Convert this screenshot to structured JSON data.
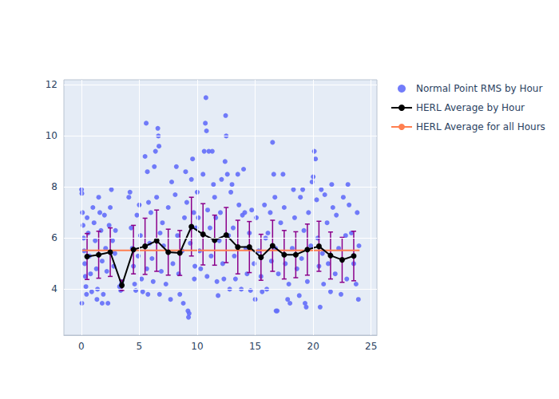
{
  "chart_data": {
    "type": "scatter",
    "xlim": [
      -1.5,
      25.5
    ],
    "xticks": [
      0,
      5,
      10,
      15,
      20,
      25
    ],
    "ylim": [
      2.2,
      12.2
    ],
    "yticks": [
      4,
      6,
      8,
      10,
      12
    ],
    "grid": true,
    "legend": "top-right",
    "series": [
      {
        "name": "Normal Point RMS by Hour",
        "type": "scatter",
        "marker": "circle",
        "color": "#636efa",
        "x": [
          0.02,
          0.05,
          0.1,
          0.15,
          0.2,
          0.25,
          0.3,
          0.35,
          0.4,
          0.45,
          0.05,
          0.5,
          0.6,
          0.7,
          0.8,
          0.9,
          1.0,
          1.1,
          1.2,
          1.3,
          1.4,
          1.5,
          1.6,
          1.7,
          1.8,
          1.9,
          1.35,
          1.8,
          2.0,
          2.1,
          2.2,
          2.3,
          2.4,
          2.5,
          2.6,
          2.7,
          2.8,
          2.9,
          2.95,
          3.3,
          3.4,
          3.5,
          3.45,
          4.1,
          4.2,
          4.3,
          4.4,
          4.5,
          4.6,
          4.7,
          4.8,
          4.9,
          5.0,
          5.1,
          5.2,
          5.3,
          5.5,
          5.6,
          5.7,
          5.8,
          5.9,
          5.65,
          5.75,
          6.0,
          6.1,
          6.2,
          6.3,
          6.4,
          6.5,
          6.6,
          6.65,
          6.7,
          6.8,
          6.9,
          6.75,
          7.0,
          7.1,
          7.3,
          7.5,
          7.7,
          7.8,
          7.9,
          8.1,
          8.2,
          8.3,
          8.4,
          8.5,
          8.7,
          8.9,
          8.8,
          9.0,
          9.1,
          9.2,
          9.25,
          9.3,
          9.4,
          9.5,
          9.6,
          9.7,
          9.8,
          9.9,
          9.75,
          10.0,
          10.1,
          10.2,
          10.3,
          10.5,
          10.6,
          10.7,
          10.75,
          10.8,
          10.9,
          10.85,
          11.0,
          11.1,
          11.2,
          11.3,
          11.4,
          11.5,
          11.6,
          11.7,
          11.8,
          11.9,
          12.0,
          12.1,
          12.2,
          12.3,
          12.4,
          12.45,
          12.5,
          12.6,
          12.7,
          12.8,
          12.9,
          13.0,
          13.1,
          13.2,
          13.3,
          13.5,
          13.6,
          13.8,
          13.9,
          14.0,
          14.1,
          14.2,
          14.3,
          14.5,
          14.6,
          14.7,
          14.9,
          15.0,
          15.1,
          15.3,
          15.5,
          15.6,
          15.8,
          15.9,
          16.0,
          16.1,
          16.3,
          16.4,
          16.5,
          16.6,
          16.7,
          16.8,
          16.9,
          16.75,
          17.0,
          17.2,
          17.4,
          17.5,
          17.6,
          17.8,
          17.9,
          18.0,
          18.2,
          18.3,
          18.4,
          18.6,
          18.8,
          18.9,
          19.0,
          19.1,
          19.2,
          19.3,
          19.4,
          19.5,
          19.6,
          19.8,
          19.9,
          20.0,
          20.1,
          20.2,
          20.3,
          20.4,
          20.5,
          20.6,
          20.7,
          20.8,
          20.9,
          21.0,
          21.2,
          21.3,
          21.5,
          21.6,
          21.7,
          21.9,
          22.0,
          22.2,
          22.4,
          22.6,
          22.8,
          22.9,
          23.0,
          23.1,
          23.3,
          23.5,
          23.7,
          23.8,
          23.9,
          23.95
        ],
        "values": [
          7.9,
          7.75,
          7.0,
          6.5,
          6.0,
          5.5,
          5.0,
          4.5,
          4.1,
          3.8,
          3.45,
          6.8,
          6.2,
          5.3,
          4.6,
          3.9,
          7.2,
          6.6,
          5.9,
          4.8,
          4.0,
          7.6,
          7.0,
          6.3,
          5.1,
          3.8,
          3.6,
          3.45,
          6.9,
          5.6,
          4.7,
          3.45,
          6.5,
          7.2,
          7.9,
          5.9,
          4.9,
          5.4,
          6.3,
          4.1,
          3.95,
          4.3,
          4.2,
          7.6,
          7.8,
          6.4,
          5.6,
          4.9,
          4.2,
          3.95,
          6.9,
          5.3,
          7.3,
          6.1,
          4.4,
          3.9,
          9.2,
          10.5,
          8.6,
          7.4,
          5.8,
          4.8,
          3.8,
          7.0,
          5.2,
          4.3,
          8.8,
          9.4,
          7.6,
          10.3,
          10.0,
          9.6,
          6.2,
          4.7,
          3.8,
          6.6,
          5.7,
          4.2,
          7.2,
          3.6,
          8.2,
          5.0,
          7.7,
          8.8,
          6.1,
          4.6,
          3.8,
          5.5,
          6.8,
          3.45,
          8.6,
          7.4,
          3.15,
          2.9,
          3.05,
          5.8,
          8.3,
          9.1,
          7.0,
          4.9,
          6.4,
          4.4,
          7.8,
          6.8,
          5.5,
          4.8,
          8.5,
          9.4,
          10.5,
          11.5,
          10.2,
          7.1,
          4.5,
          9.4,
          6.4,
          5.3,
          9.4,
          8.1,
          7.6,
          6.8,
          4.3,
          3.75,
          5.9,
          7.0,
          8.3,
          5.0,
          4.4,
          9.0,
          10.8,
          10.0,
          8.5,
          6.1,
          4.0,
          7.8,
          8.1,
          6.4,
          5.3,
          4.4,
          8.5,
          7.3,
          4.0,
          6.9,
          8.7,
          7.0,
          5.6,
          4.6,
          6.2,
          3.95,
          7.1,
          5.0,
          3.6,
          6.8,
          5.5,
          4.5,
          3.9,
          7.3,
          6.0,
          4.0,
          6.2,
          7.0,
          5.1,
          9.75,
          8.5,
          7.6,
          3.15,
          3.15,
          5.6,
          4.6,
          6.6,
          8.5,
          7.2,
          5.0,
          3.6,
          4.2,
          3.45,
          5.6,
          7.9,
          6.8,
          4.8,
          3.75,
          7.6,
          5.2,
          7.9,
          6.3,
          3.45,
          3.3,
          4.3,
          7.0,
          5.7,
          8.2,
          8.4,
          9.4,
          9.1,
          7.5,
          6.0,
          4.9,
          3.3,
          7.9,
          5.4,
          4.2,
          7.7,
          6.6,
          5.0,
          3.9,
          8.1,
          7.2,
          4.6,
          6.9,
          5.6,
          3.8,
          7.6,
          6.1,
          4.4,
          8.1,
          7.3,
          6.2,
          5.0,
          4.2,
          7.0,
          3.6,
          5.7
        ]
      },
      {
        "name": "HERL Average by Hour",
        "type": "line",
        "marker": "circle",
        "color": "#000000",
        "x": [
          0.5,
          1.5,
          2.5,
          3.5,
          4.5,
          5.5,
          6.5,
          7.5,
          8.5,
          9.5,
          10.5,
          11.5,
          12.5,
          13.5,
          14.5,
          15.5,
          16.5,
          17.5,
          18.5,
          19.5,
          20.5,
          21.5,
          22.5,
          23.5
        ],
        "values": [
          5.28,
          5.35,
          5.45,
          4.15,
          5.55,
          5.68,
          5.9,
          5.45,
          5.42,
          6.45,
          6.15,
          5.92,
          6.12,
          5.65,
          5.65,
          5.25,
          5.7,
          5.35,
          5.35,
          5.55,
          5.68,
          5.32,
          5.15,
          5.3
        ],
        "error": [
          0.9,
          0.92,
          0.95,
          0.2,
          0.95,
          1.1,
          1.2,
          0.9,
          0.88,
          1.15,
          1.2,
          0.98,
          1.08,
          1.05,
          1.0,
          0.9,
          1.0,
          0.95,
          0.9,
          1.0,
          0.98,
          0.92,
          0.88,
          0.97
        ]
      },
      {
        "name": "HERL Average for all Hours",
        "type": "line",
        "color": "#ff7f50",
        "x": [
          0,
          24
        ],
        "values": [
          5.52,
          5.52
        ]
      }
    ]
  }
}
